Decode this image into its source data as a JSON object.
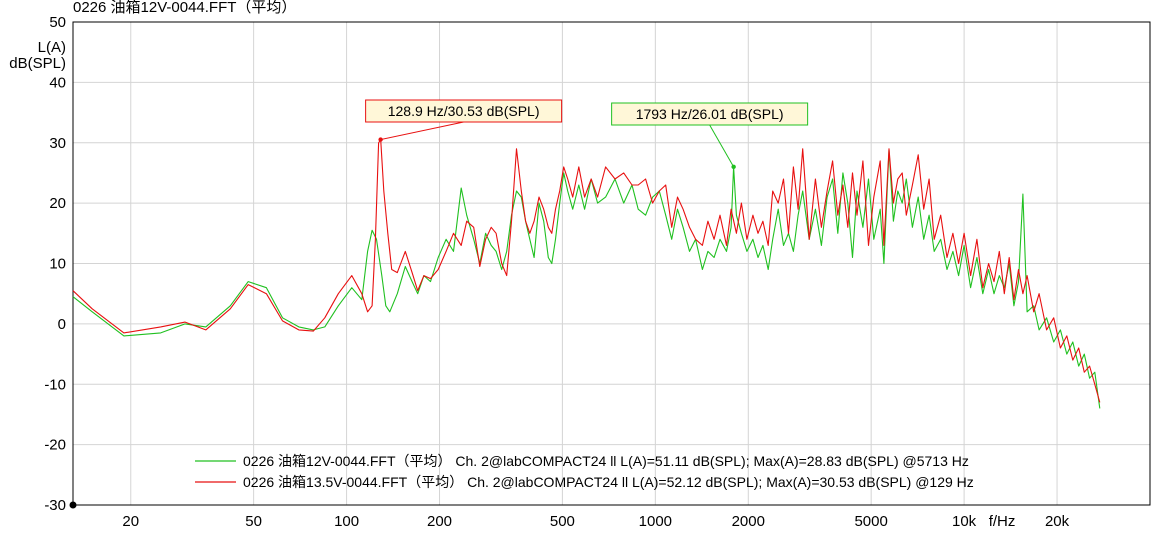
{
  "chart_data": {
    "type": "line",
    "title": "0226 油箱12V-0044.FFT（平均）",
    "ylabel_lines": [
      "L(A)",
      "dB(SPL)"
    ],
    "xlabel": "f/Hz",
    "x_scale": "log",
    "xlim": [
      13,
      40000
    ],
    "ylim": [
      -30,
      50
    ],
    "grid": true,
    "x_ticks": [
      {
        "value": 20,
        "label": "20"
      },
      {
        "value": 50,
        "label": "50"
      },
      {
        "value": 100,
        "label": "100"
      },
      {
        "value": 200,
        "label": "200"
      },
      {
        "value": 500,
        "label": "500"
      },
      {
        "value": 1000,
        "label": "1000"
      },
      {
        "value": 2000,
        "label": "2000"
      },
      {
        "value": 5000,
        "label": "5000"
      },
      {
        "value": 10000,
        "label": "10k"
      },
      {
        "value": 20000,
        "label": "20k"
      }
    ],
    "y_ticks": [
      {
        "value": 50,
        "label": "50"
      },
      {
        "value": 40,
        "label": "40"
      },
      {
        "value": 30,
        "label": "30"
      },
      {
        "value": 20,
        "label": "20"
      },
      {
        "value": 10,
        "label": "10"
      },
      {
        "value": 0,
        "label": "0"
      },
      {
        "value": -10,
        "label": "-10"
      },
      {
        "value": -20,
        "label": "-20"
      },
      {
        "value": -30,
        "label": "-30"
      }
    ],
    "legend_position": "bottom-center",
    "series": [
      {
        "name": "0226 油箱12V-0044.FFT（平均） Ch. 2@labCOMPACT24 ll L(A)=51.11 dB(SPL); Max(A)=28.83 dB(SPL) @5713 Hz",
        "color": "#20c020",
        "points": [
          [
            13,
            4.5
          ],
          [
            15,
            2
          ],
          [
            19,
            -2
          ],
          [
            25,
            -1.5
          ],
          [
            30,
            0
          ],
          [
            35,
            -0.5
          ],
          [
            42,
            3
          ],
          [
            48,
            7
          ],
          [
            55,
            6
          ],
          [
            62,
            1
          ],
          [
            70,
            -0.5
          ],
          [
            78,
            -1
          ],
          [
            85,
            -0.5
          ],
          [
            94,
            3
          ],
          [
            104,
            6
          ],
          [
            112,
            4
          ],
          [
            117,
            12
          ],
          [
            121,
            15.5
          ],
          [
            125,
            14
          ],
          [
            130,
            8
          ],
          [
            134,
            3
          ],
          [
            138,
            2
          ],
          [
            146,
            5
          ],
          [
            155,
            9.5
          ],
          [
            163,
            7
          ],
          [
            170,
            5
          ],
          [
            178,
            8
          ],
          [
            187,
            7
          ],
          [
            198,
            11
          ],
          [
            210,
            14
          ],
          [
            222,
            12
          ],
          [
            235,
            22.5
          ],
          [
            245,
            18
          ],
          [
            258,
            14
          ],
          [
            270,
            10
          ],
          [
            282,
            15
          ],
          [
            294,
            13
          ],
          [
            305,
            12
          ],
          [
            318,
            9
          ],
          [
            330,
            12
          ],
          [
            342,
            18
          ],
          [
            355,
            22
          ],
          [
            368,
            21
          ],
          [
            380,
            17
          ],
          [
            392,
            14
          ],
          [
            405,
            11
          ],
          [
            420,
            20
          ],
          [
            435,
            17
          ],
          [
            450,
            11
          ],
          [
            462,
            10
          ],
          [
            475,
            14
          ],
          [
            490,
            20
          ],
          [
            505,
            25
          ],
          [
            520,
            22
          ],
          [
            540,
            19
          ],
          [
            565,
            23
          ],
          [
            590,
            19
          ],
          [
            620,
            24
          ],
          [
            650,
            20
          ],
          [
            690,
            21
          ],
          [
            740,
            24
          ],
          [
            790,
            20
          ],
          [
            840,
            23
          ],
          [
            880,
            19
          ],
          [
            930,
            18
          ],
          [
            980,
            21
          ],
          [
            1030,
            22
          ],
          [
            1080,
            18
          ],
          [
            1130,
            14
          ],
          [
            1180,
            19
          ],
          [
            1230,
            16
          ],
          [
            1290,
            12
          ],
          [
            1350,
            14
          ],
          [
            1420,
            9
          ],
          [
            1480,
            12
          ],
          [
            1550,
            11
          ],
          [
            1620,
            14
          ],
          [
            1700,
            12
          ],
          [
            1760,
            16
          ],
          [
            1793,
            26
          ],
          [
            1830,
            18
          ],
          [
            1900,
            15
          ],
          [
            1980,
            12
          ],
          [
            2070,
            14
          ],
          [
            2150,
            11
          ],
          [
            2230,
            13
          ],
          [
            2320,
            9
          ],
          [
            2400,
            14
          ],
          [
            2500,
            19
          ],
          [
            2600,
            13
          ],
          [
            2700,
            15
          ],
          [
            2800,
            12
          ],
          [
            2900,
            18
          ],
          [
            3000,
            22
          ],
          [
            3150,
            14
          ],
          [
            3300,
            19
          ],
          [
            3450,
            13
          ],
          [
            3600,
            21
          ],
          [
            3750,
            24
          ],
          [
            3900,
            15
          ],
          [
            4050,
            25
          ],
          [
            4200,
            20
          ],
          [
            4350,
            11
          ],
          [
            4500,
            22
          ],
          [
            4700,
            16
          ],
          [
            4900,
            24
          ],
          [
            5100,
            14
          ],
          [
            5350,
            19
          ],
          [
            5500,
            10
          ],
          [
            5713,
            28.8
          ],
          [
            5900,
            17
          ],
          [
            6100,
            22
          ],
          [
            6300,
            20
          ],
          [
            6500,
            24
          ],
          [
            6800,
            16
          ],
          [
            7100,
            21
          ],
          [
            7400,
            14
          ],
          [
            7700,
            18
          ],
          [
            8000,
            12
          ],
          [
            8400,
            14
          ],
          [
            8800,
            9
          ],
          [
            9200,
            12
          ],
          [
            9600,
            8
          ],
          [
            10000,
            13
          ],
          [
            10500,
            6
          ],
          [
            11000,
            11
          ],
          [
            11500,
            5
          ],
          [
            12000,
            9
          ],
          [
            12500,
            5
          ],
          [
            13000,
            8
          ],
          [
            13500,
            6
          ],
          [
            14000,
            10
          ],
          [
            14500,
            3
          ],
          [
            15000,
            7
          ],
          [
            15500,
            21.5
          ],
          [
            16000,
            2
          ],
          [
            16800,
            3
          ],
          [
            17500,
            -1
          ],
          [
            18500,
            1
          ],
          [
            19500,
            -3
          ],
          [
            20500,
            -1
          ],
          [
            21500,
            -5
          ],
          [
            22500,
            -3
          ],
          [
            23500,
            -7
          ],
          [
            24500,
            -5
          ],
          [
            25500,
            -9
          ],
          [
            26500,
            -8
          ],
          [
            27500,
            -14
          ]
        ]
      },
      {
        "name": "0226 油箱13.5V-0044.FFT（平均） Ch. 2@labCOMPACT24 ll L(A)=52.12 dB(SPL); Max(A)=30.53 dB(SPL) @129 Hz",
        "color": "#e81010",
        "points": [
          [
            13,
            5.5
          ],
          [
            15,
            2.5
          ],
          [
            19,
            -1.5
          ],
          [
            25,
            -0.5
          ],
          [
            30,
            0.3
          ],
          [
            35,
            -1
          ],
          [
            42,
            2.5
          ],
          [
            48,
            6.5
          ],
          [
            55,
            5
          ],
          [
            62,
            0.5
          ],
          [
            70,
            -1
          ],
          [
            78,
            -1.2
          ],
          [
            85,
            1
          ],
          [
            94,
            5
          ],
          [
            104,
            8
          ],
          [
            112,
            5
          ],
          [
            117,
            2
          ],
          [
            121,
            3
          ],
          [
            124,
            14
          ],
          [
            127,
            30
          ],
          [
            129,
            30.5
          ],
          [
            132,
            22
          ],
          [
            136,
            15
          ],
          [
            140,
            9
          ],
          [
            146,
            8.5
          ],
          [
            155,
            12
          ],
          [
            163,
            8.5
          ],
          [
            170,
            5.5
          ],
          [
            178,
            8
          ],
          [
            187,
            7.5
          ],
          [
            198,
            9
          ],
          [
            210,
            12
          ],
          [
            222,
            15
          ],
          [
            235,
            13
          ],
          [
            245,
            17
          ],
          [
            258,
            16
          ],
          [
            270,
            9.5
          ],
          [
            282,
            14
          ],
          [
            294,
            16
          ],
          [
            305,
            15
          ],
          [
            318,
            10
          ],
          [
            330,
            8
          ],
          [
            342,
            17
          ],
          [
            355,
            29
          ],
          [
            368,
            22
          ],
          [
            380,
            17
          ],
          [
            392,
            15
          ],
          [
            405,
            17
          ],
          [
            420,
            21
          ],
          [
            435,
            19
          ],
          [
            450,
            16
          ],
          [
            462,
            15
          ],
          [
            475,
            19
          ],
          [
            490,
            22
          ],
          [
            505,
            26
          ],
          [
            520,
            24
          ],
          [
            540,
            21
          ],
          [
            565,
            26
          ],
          [
            590,
            21
          ],
          [
            620,
            24
          ],
          [
            650,
            21
          ],
          [
            690,
            26
          ],
          [
            740,
            24
          ],
          [
            790,
            25
          ],
          [
            840,
            23
          ],
          [
            880,
            23
          ],
          [
            930,
            24
          ],
          [
            980,
            20
          ],
          [
            1030,
            22
          ],
          [
            1080,
            23
          ],
          [
            1130,
            16
          ],
          [
            1180,
            21
          ],
          [
            1230,
            19
          ],
          [
            1290,
            16
          ],
          [
            1350,
            14
          ],
          [
            1420,
            13
          ],
          [
            1480,
            17
          ],
          [
            1550,
            14
          ],
          [
            1620,
            18
          ],
          [
            1700,
            13
          ],
          [
            1760,
            19
          ],
          [
            1830,
            15
          ],
          [
            1900,
            20
          ],
          [
            1980,
            14
          ],
          [
            2070,
            18
          ],
          [
            2150,
            15
          ],
          [
            2230,
            17
          ],
          [
            2320,
            13
          ],
          [
            2400,
            22
          ],
          [
            2500,
            20
          ],
          [
            2600,
            24
          ],
          [
            2700,
            15
          ],
          [
            2800,
            26
          ],
          [
            2900,
            19
          ],
          [
            3000,
            29
          ],
          [
            3150,
            14
          ],
          [
            3300,
            24
          ],
          [
            3450,
            16
          ],
          [
            3600,
            22
          ],
          [
            3750,
            27
          ],
          [
            3900,
            18
          ],
          [
            4050,
            23
          ],
          [
            4200,
            16
          ],
          [
            4350,
            25
          ],
          [
            4500,
            18
          ],
          [
            4700,
            27
          ],
          [
            4900,
            13
          ],
          [
            5100,
            21
          ],
          [
            5350,
            27
          ],
          [
            5500,
            13
          ],
          [
            5713,
            29
          ],
          [
            5900,
            20
          ],
          [
            6100,
            24
          ],
          [
            6300,
            25
          ],
          [
            6500,
            18
          ],
          [
            6800,
            23
          ],
          [
            7100,
            28
          ],
          [
            7400,
            19
          ],
          [
            7700,
            24
          ],
          [
            8000,
            14
          ],
          [
            8400,
            18
          ],
          [
            8800,
            11
          ],
          [
            9200,
            15
          ],
          [
            9600,
            10
          ],
          [
            10000,
            15
          ],
          [
            10500,
            8
          ],
          [
            11000,
            14
          ],
          [
            11500,
            6
          ],
          [
            12000,
            10
          ],
          [
            12500,
            7
          ],
          [
            13000,
            12
          ],
          [
            13500,
            5
          ],
          [
            14000,
            11
          ],
          [
            14500,
            4
          ],
          [
            15000,
            9
          ],
          [
            15500,
            5
          ],
          [
            16000,
            8
          ],
          [
            16800,
            2
          ],
          [
            17500,
            5
          ],
          [
            18500,
            -1
          ],
          [
            19500,
            1
          ],
          [
            20500,
            -4
          ],
          [
            21500,
            -2
          ],
          [
            22500,
            -6
          ],
          [
            23500,
            -4
          ],
          [
            24500,
            -8
          ],
          [
            25500,
            -7
          ],
          [
            26500,
            -10
          ],
          [
            27500,
            -13
          ]
        ]
      }
    ],
    "annotations": [
      {
        "text": "128.9 Hz/30.53 dB(SPL)",
        "x": 128.9,
        "y": 30.53,
        "color": "#e81010",
        "fill": "#fff7d8"
      },
      {
        "text": "1793 Hz/26.01 dB(SPL)",
        "x": 1793,
        "y": 26.01,
        "color": "#20c020",
        "fill": "#fff7d8"
      }
    ]
  }
}
